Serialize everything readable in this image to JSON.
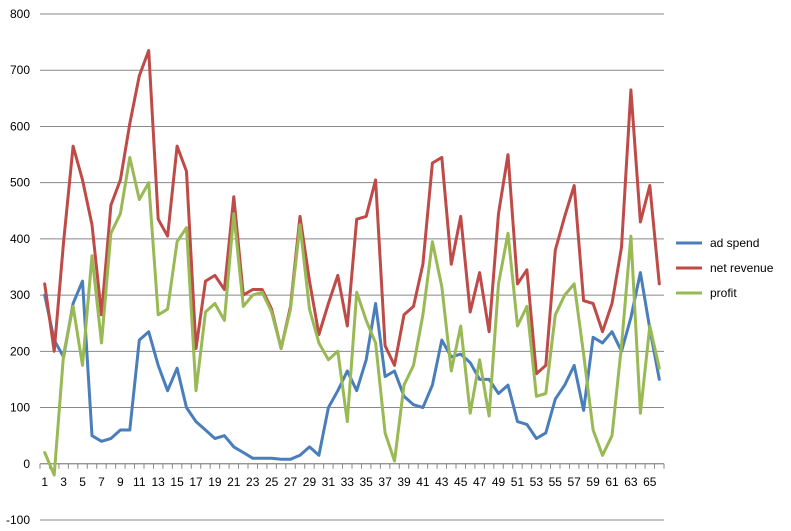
{
  "chart_data": {
    "type": "line",
    "title": "",
    "xlabel": "",
    "ylabel": "",
    "ylim": [
      -100,
      800
    ],
    "yticks": [
      -100,
      0,
      100,
      200,
      300,
      400,
      500,
      600,
      700,
      800
    ],
    "xtick_labels": [
      "1",
      "3",
      "5",
      "7",
      "9",
      "11",
      "13",
      "15",
      "17",
      "19",
      "21",
      "23",
      "25",
      "27",
      "29",
      "31",
      "33",
      "35",
      "37",
      "39",
      "41",
      "43",
      "45",
      "47",
      "49",
      "51",
      "53",
      "55",
      "57",
      "59",
      "61",
      "63",
      "65"
    ],
    "grid": "horizontal",
    "legend_position": "right",
    "x": [
      1,
      2,
      3,
      4,
      5,
      6,
      7,
      8,
      9,
      10,
      11,
      12,
      13,
      14,
      15,
      16,
      17,
      18,
      19,
      20,
      21,
      22,
      23,
      24,
      25,
      26,
      27,
      28,
      29,
      30,
      31,
      32,
      33,
      34,
      35,
      36,
      37,
      38,
      39,
      40,
      41,
      42,
      43,
      44,
      45,
      46,
      47,
      48,
      49,
      50,
      51,
      52,
      53,
      54,
      55,
      56,
      57,
      58,
      59,
      60,
      61,
      62,
      63,
      64,
      65,
      66
    ],
    "series": [
      {
        "name": "ad spend",
        "color": "#4a7ebb",
        "values": [
          300,
          220,
          190,
          285,
          325,
          50,
          40,
          45,
          60,
          60,
          220,
          235,
          175,
          130,
          170,
          100,
          75,
          60,
          45,
          50,
          30,
          20,
          10,
          10,
          10,
          8,
          8,
          15,
          30,
          15,
          100,
          130,
          165,
          130,
          185,
          285,
          155,
          165,
          120,
          105,
          100,
          140,
          220,
          190,
          195,
          180,
          150,
          150,
          125,
          140,
          75,
          70,
          45,
          55,
          115,
          140,
          175,
          95,
          225,
          215,
          235,
          200,
          260,
          340,
          240,
          150
        ]
      },
      {
        "name": "net revenue",
        "color": "#be4b48",
        "values": [
          320,
          200,
          395,
          565,
          505,
          425,
          265,
          460,
          505,
          605,
          690,
          735,
          435,
          405,
          565,
          520,
          205,
          325,
          335,
          310,
          475,
          300,
          310,
          310,
          275,
          205,
          280,
          440,
          325,
          230,
          285,
          335,
          245,
          435,
          440,
          505,
          210,
          175,
          265,
          280,
          355,
          535,
          545,
          355,
          440,
          270,
          340,
          235,
          445,
          550,
          320,
          345,
          160,
          175,
          380,
          440,
          495,
          290,
          285,
          235,
          285,
          385,
          665,
          430,
          495,
          320
        ]
      },
      {
        "name": "profit",
        "color": "#98b954",
        "values": [
          20,
          -20,
          195,
          280,
          175,
          370,
          215,
          410,
          445,
          545,
          470,
          500,
          265,
          275,
          395,
          420,
          130,
          270,
          285,
          255,
          445,
          280,
          300,
          305,
          270,
          205,
          275,
          425,
          275,
          215,
          185,
          200,
          75,
          305,
          255,
          215,
          55,
          5,
          140,
          175,
          265,
          395,
          315,
          165,
          245,
          90,
          185,
          85,
          320,
          410,
          245,
          280,
          120,
          125,
          265,
          300,
          320,
          195,
          60,
          15,
          50,
          210,
          405,
          90,
          245,
          170
        ]
      }
    ]
  }
}
